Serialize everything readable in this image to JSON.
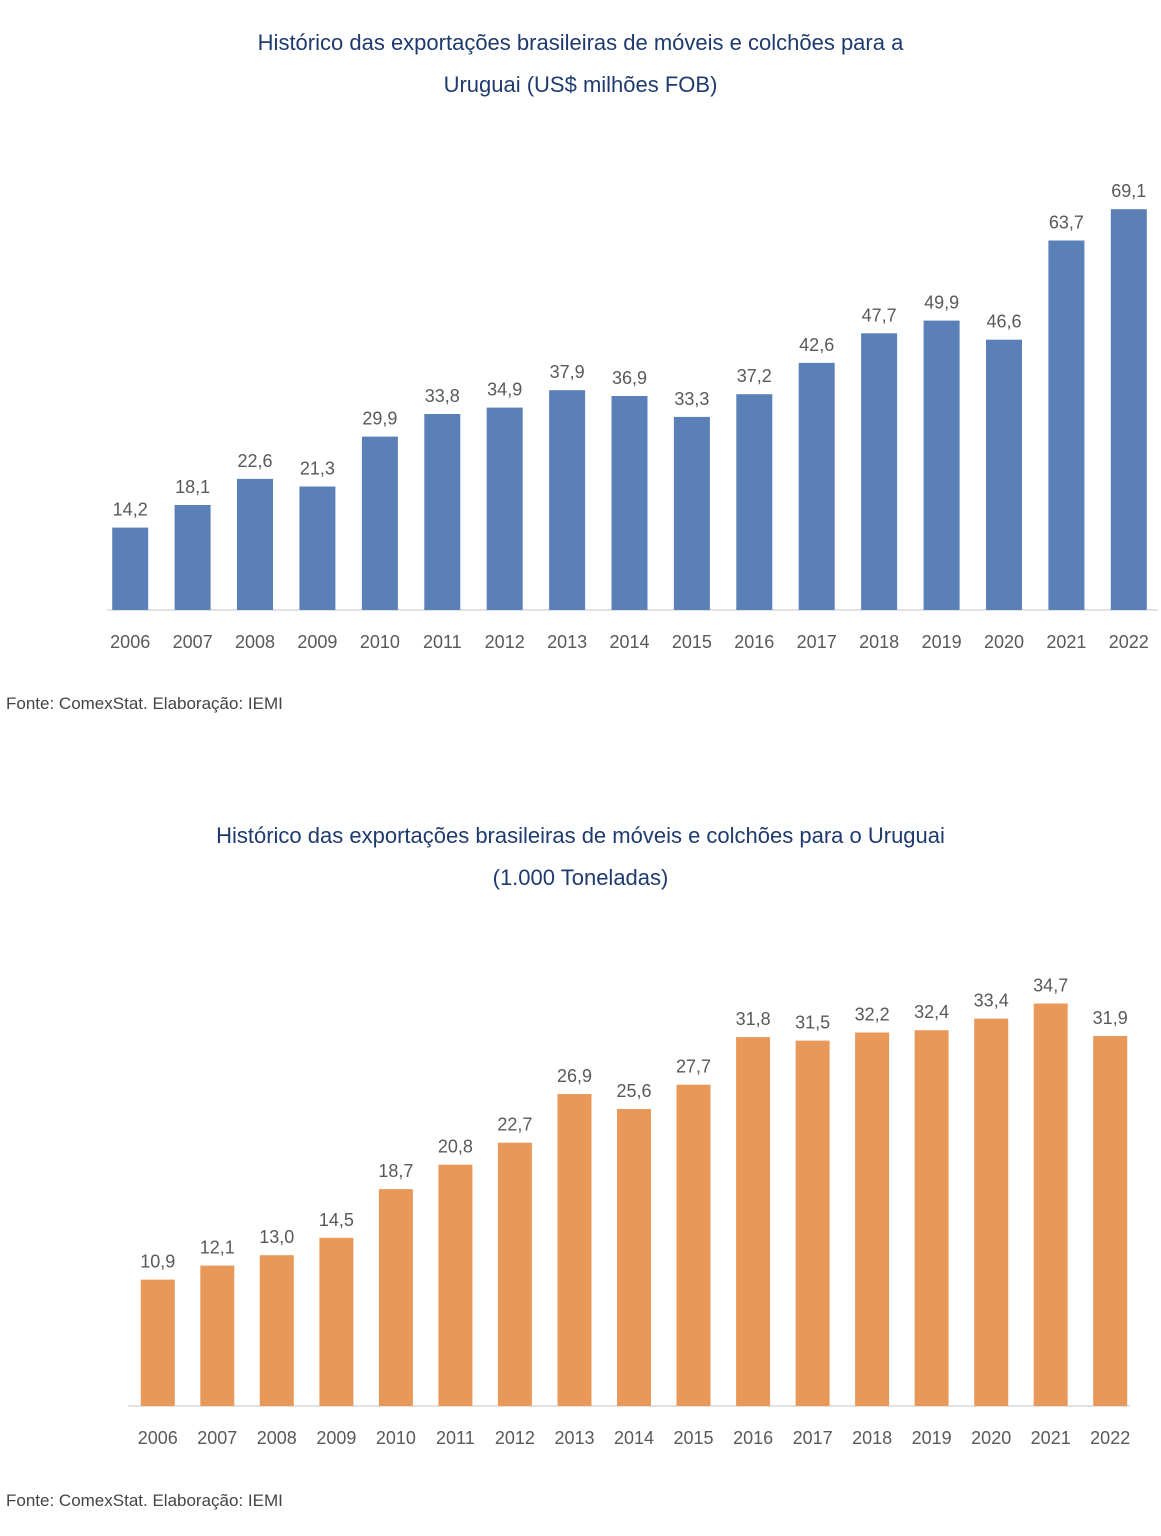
{
  "chart_data": [
    {
      "type": "bar",
      "title_line1": "Histórico das exportações brasileiras de móveis e colchões para a",
      "title_line2": "Uruguai (US$ milhões FOB)",
      "categories": [
        "2006",
        "2007",
        "2008",
        "2009",
        "2010",
        "2011",
        "2012",
        "2013",
        "2014",
        "2015",
        "2016",
        "2017",
        "2018",
        "2019",
        "2020",
        "2021",
        "2022"
      ],
      "values": [
        14.2,
        18.1,
        22.6,
        21.3,
        29.9,
        33.8,
        34.9,
        37.9,
        36.9,
        33.3,
        37.2,
        42.6,
        47.7,
        49.9,
        46.6,
        63.7,
        69.1
      ],
      "labels": [
        "14,2",
        "18,1",
        "22,6",
        "21,3",
        "29,9",
        "33,8",
        "34,9",
        "37,9",
        "36,9",
        "33,3",
        "37,2",
        "42,6",
        "47,7",
        "49,9",
        "46,6",
        "63,7",
        "69,1"
      ],
      "color": "#5b80b8",
      "grid": false,
      "source": "Fonte: ComexStat. Elaboração: IEMI"
    },
    {
      "type": "bar",
      "title_line1": "Histórico das exportações brasileiras de móveis e colchões para o Uruguai",
      "title_line2": "(1.000 Toneladas)",
      "categories": [
        "2006",
        "2007",
        "2008",
        "2009",
        "2010",
        "2011",
        "2012",
        "2013",
        "2014",
        "2015",
        "2016",
        "2017",
        "2018",
        "2019",
        "2020",
        "2021",
        "2022"
      ],
      "values": [
        10.9,
        12.1,
        13.0,
        14.5,
        18.7,
        20.8,
        22.7,
        26.9,
        25.6,
        27.7,
        31.8,
        31.5,
        32.2,
        32.4,
        33.4,
        34.7,
        31.9
      ],
      "labels": [
        "10,9",
        "12,1",
        "13,0",
        "14,5",
        "18,7",
        "20,8",
        "22,7",
        "26,9",
        "25,6",
        "27,7",
        "31,8",
        "31,5",
        "32,2",
        "32,4",
        "33,4",
        "34,7",
        "31,9"
      ],
      "color": "#e8995a",
      "grid": false,
      "source": "Fonte: ComexStat. Elaboração: IEMI"
    }
  ]
}
